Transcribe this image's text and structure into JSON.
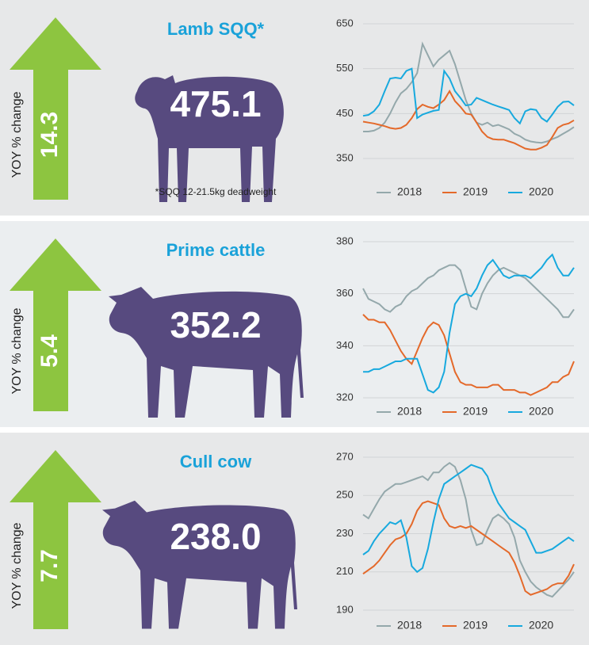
{
  "chart_data": [
    {
      "type": "line",
      "title": "Lamb SQQ*",
      "price": "475.1",
      "change": "14.3",
      "change_label": "YOY % change",
      "note": "*SQQ 12-21.5kg deadweight",
      "ylim": [
        350,
        650
      ],
      "yticks": [
        350,
        450,
        550,
        650
      ],
      "grid": true,
      "series": [
        {
          "name": "2018",
          "color": "#94a8ab",
          "values": [
            410,
            410,
            412,
            418,
            430,
            450,
            475,
            495,
            505,
            520,
            540,
            605,
            580,
            555,
            570,
            580,
            590,
            560,
            520,
            480,
            450,
            430,
            425,
            430,
            422,
            425,
            420,
            415,
            405,
            400,
            392,
            388,
            386,
            385,
            388,
            393,
            398,
            405,
            412,
            420
          ]
        },
        {
          "name": "2019",
          "color": "#e4692a",
          "values": [
            432,
            430,
            428,
            425,
            422,
            418,
            416,
            418,
            425,
            440,
            460,
            470,
            465,
            462,
            470,
            480,
            500,
            478,
            465,
            450,
            448,
            430,
            410,
            398,
            393,
            392,
            392,
            388,
            384,
            378,
            372,
            370,
            370,
            374,
            380,
            398,
            418,
            425,
            428,
            435
          ]
        },
        {
          "name": "2020",
          "color": "#17a9de",
          "values": [
            445,
            447,
            455,
            470,
            500,
            528,
            530,
            528,
            545,
            550,
            440,
            448,
            452,
            456,
            458,
            545,
            528,
            500,
            485,
            468,
            470,
            485,
            480,
            475,
            470,
            466,
            462,
            458,
            440,
            428,
            455,
            460,
            458,
            440,
            432,
            448,
            465,
            476,
            477,
            468
          ]
        }
      ]
    },
    {
      "type": "line",
      "title": "Prime cattle",
      "price": "352.2",
      "change": "5.4",
      "change_label": "YOY % change",
      "ylim": [
        320,
        380
      ],
      "yticks": [
        320,
        340,
        360,
        380
      ],
      "grid": true,
      "series": [
        {
          "name": "2018",
          "color": "#94a8ab",
          "values": [
            362,
            358,
            357,
            356,
            354,
            353,
            355,
            356,
            359,
            361,
            362,
            364,
            366,
            367,
            369,
            370,
            371,
            371,
            369,
            362,
            355,
            354,
            360,
            364,
            367,
            369,
            370,
            369,
            368,
            367,
            366,
            364,
            362,
            360,
            358,
            356,
            354,
            351,
            351,
            354
          ]
        },
        {
          "name": "2019",
          "color": "#e4692a",
          "values": [
            352,
            350,
            350,
            349,
            349,
            346,
            342,
            338,
            335,
            333,
            338,
            343,
            347,
            349,
            348,
            344,
            337,
            330,
            326,
            325,
            325,
            324,
            324,
            324,
            325,
            325,
            323,
            323,
            323,
            322,
            322,
            321,
            322,
            323,
            324,
            326,
            326,
            328,
            329,
            334
          ]
        },
        {
          "name": "2020",
          "color": "#17a9de",
          "values": [
            330,
            330,
            331,
            331,
            332,
            333,
            334,
            334,
            335,
            335,
            335,
            329,
            323,
            322,
            324,
            330,
            345,
            356,
            359,
            360,
            359,
            362,
            367,
            371,
            373,
            370,
            367,
            366,
            367,
            367,
            367,
            366,
            368,
            370,
            373,
            375,
            370,
            367,
            367,
            370
          ]
        }
      ]
    },
    {
      "type": "line",
      "title": "Cull cow",
      "price": "238.0",
      "change": "7.7",
      "change_label": "YOY % change",
      "ylim": [
        190,
        270
      ],
      "yticks": [
        190,
        210,
        230,
        250,
        270
      ],
      "grid": true,
      "series": [
        {
          "name": "2018",
          "color": "#94a8ab",
          "values": [
            240,
            238,
            243,
            248,
            252,
            254,
            256,
            256,
            257,
            258,
            259,
            260,
            258,
            262,
            262,
            265,
            267,
            265,
            258,
            248,
            232,
            224,
            225,
            232,
            238,
            240,
            238,
            235,
            228,
            216,
            210,
            205,
            202,
            200,
            198,
            197,
            200,
            203,
            206,
            210
          ]
        },
        {
          "name": "2019",
          "color": "#e4692a",
          "values": [
            209,
            211,
            213,
            216,
            220,
            224,
            227,
            228,
            230,
            235,
            242,
            246,
            247,
            246,
            245,
            238,
            234,
            233,
            234,
            233,
            234,
            232,
            230,
            228,
            226,
            224,
            222,
            220,
            215,
            208,
            200,
            198,
            199,
            200,
            201,
            203,
            204,
            204,
            208,
            214
          ]
        },
        {
          "name": "2020",
          "color": "#17a9de",
          "values": [
            219,
            221,
            226,
            230,
            233,
            236,
            235,
            237,
            228,
            213,
            210,
            212,
            222,
            236,
            248,
            256,
            258,
            260,
            262,
            264,
            266,
            265,
            264,
            260,
            252,
            246,
            242,
            238,
            236,
            234,
            232,
            226,
            220,
            220,
            221,
            222,
            224,
            226,
            228,
            226
          ]
        }
      ]
    }
  ]
}
